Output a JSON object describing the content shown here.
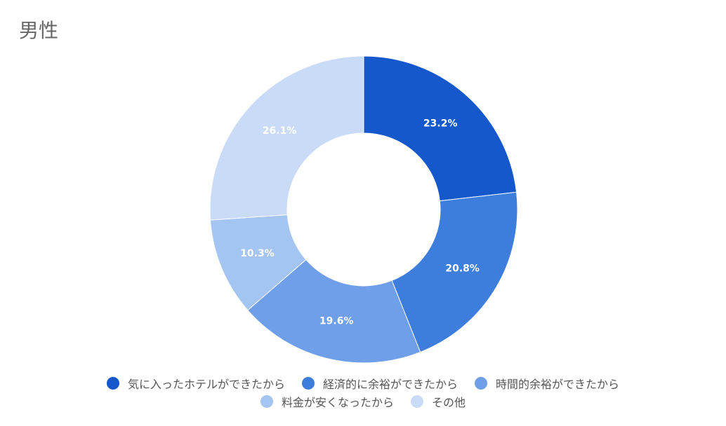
{
  "chart_data": {
    "type": "pie",
    "title": "男性",
    "donut": true,
    "categories": [
      "気に入ったホテルができたから",
      "経済的に余裕ができたから",
      "時間的余裕ができたから",
      "料金が安くなったから",
      "その他"
    ],
    "values": [
      23.2,
      20.8,
      19.6,
      10.3,
      26.1
    ],
    "labels": [
      "23.2%",
      "20.8%",
      "19.6%",
      "10.3%",
      "26.1%"
    ],
    "colors": [
      "#1558cc",
      "#3d7ddb",
      "#6e9fe8",
      "#a4c4f2",
      "#c9dbf6"
    ],
    "legend_position": "bottom"
  }
}
